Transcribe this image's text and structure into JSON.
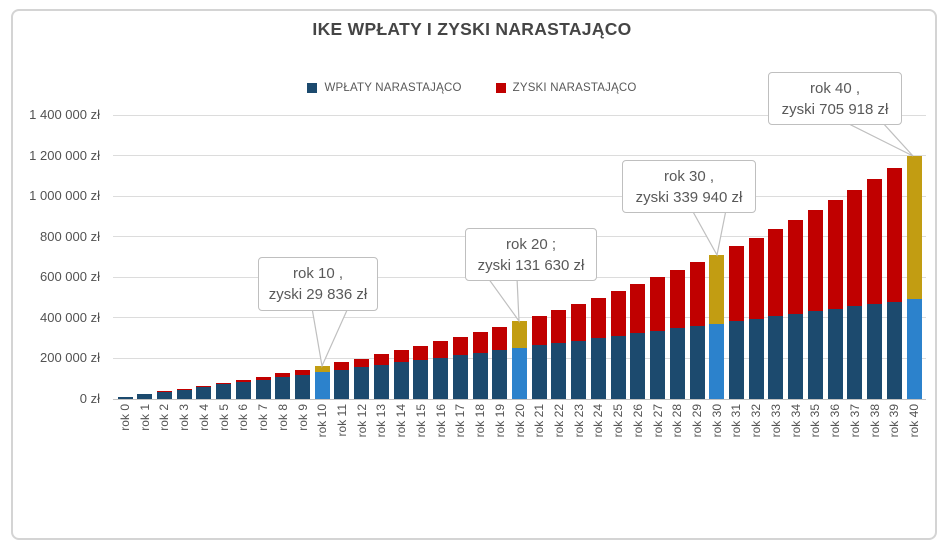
{
  "chart_data": {
    "type": "bar",
    "stacked": true,
    "title": "IKE WPŁATY I ZYSKI NARASTAJĄCO",
    "categories": [
      "rok 0",
      "rok 1",
      "rok 2",
      "rok 3",
      "rok 4",
      "rok 5",
      "rok 6",
      "rok 7",
      "rok 8",
      "rok 9",
      "rok 10",
      "rok 11",
      "rok 12",
      "rok 13",
      "rok 14",
      "rok 15",
      "rok 16",
      "rok 17",
      "rok 18",
      "rok 19",
      "rok 20",
      "rok 21",
      "rok 22",
      "rok 23",
      "rok 24",
      "rok 25",
      "rok 26",
      "rok 27",
      "rok 28",
      "rok 29",
      "rok 30",
      "rok 31",
      "rok 32",
      "rok 33",
      "rok 34",
      "rok 35",
      "rok 36",
      "rok 37",
      "rok 38",
      "rok 39",
      "rok 40"
    ],
    "series": [
      {
        "name": "WPŁATY NARASTAJĄCO",
        "color": "#1c4a6e",
        "highlight_color": "#2c82cc",
        "values": [
          12000,
          24000,
          36000,
          48000,
          60000,
          72000,
          84000,
          96000,
          108000,
          120000,
          132000,
          144000,
          156000,
          168000,
          180000,
          192000,
          204000,
          216000,
          228000,
          240000,
          252000,
          264000,
          276000,
          288000,
          300000,
          312000,
          324000,
          336000,
          348000,
          360000,
          372000,
          384000,
          396000,
          408000,
          420000,
          432000,
          444000,
          456000,
          468000,
          480000,
          492000
        ]
      },
      {
        "name": "ZYSKI NARASTAJĄCO",
        "color": "#c00000",
        "highlight_color": "#c29d12",
        "values": [
          0,
          480,
          1459,
          2958,
          4996,
          7596,
          10780,
          14571,
          18994,
          24073,
          29836,
          36310,
          43522,
          51503,
          60283,
          69894,
          80370,
          91745,
          104055,
          117337,
          131630,
          146976,
          163415,
          180991,
          199751,
          219741,
          241011,
          263611,
          287595,
          313019,
          339940,
          368418,
          398514,
          430295,
          463827,
          499180,
          536427,
          575644,
          616910,
          660306,
          705918
        ]
      }
    ],
    "highlighted_categories": [
      "rok 10",
      "rok 20",
      "rok 30",
      "rok 40"
    ],
    "y_ticks": [
      "0 zł",
      "200 000 zł",
      "400 000 zł",
      "600 000 zł",
      "800 000 zł",
      "1 000 000 zł",
      "1 200 000 zł",
      "1 400 000 zł"
    ],
    "ylim": [
      0,
      1400000
    ],
    "xlabel": "",
    "ylabel": "",
    "grid": "horizontal",
    "legend_position": "top",
    "annotations": [
      {
        "category": "rok 10",
        "line1": "rok 10 ,",
        "line2": "zyski 29 836 zł"
      },
      {
        "category": "rok 20",
        "line1": "rok 20 ;",
        "line2": "zyski 131 630 zł"
      },
      {
        "category": "rok 30",
        "line1": "rok 30 ,",
        "line2": "zyski 339 940 zł"
      },
      {
        "category": "rok 40",
        "line1": "rok 40 ,",
        "line2": "zyski 705 918 zł"
      }
    ]
  }
}
